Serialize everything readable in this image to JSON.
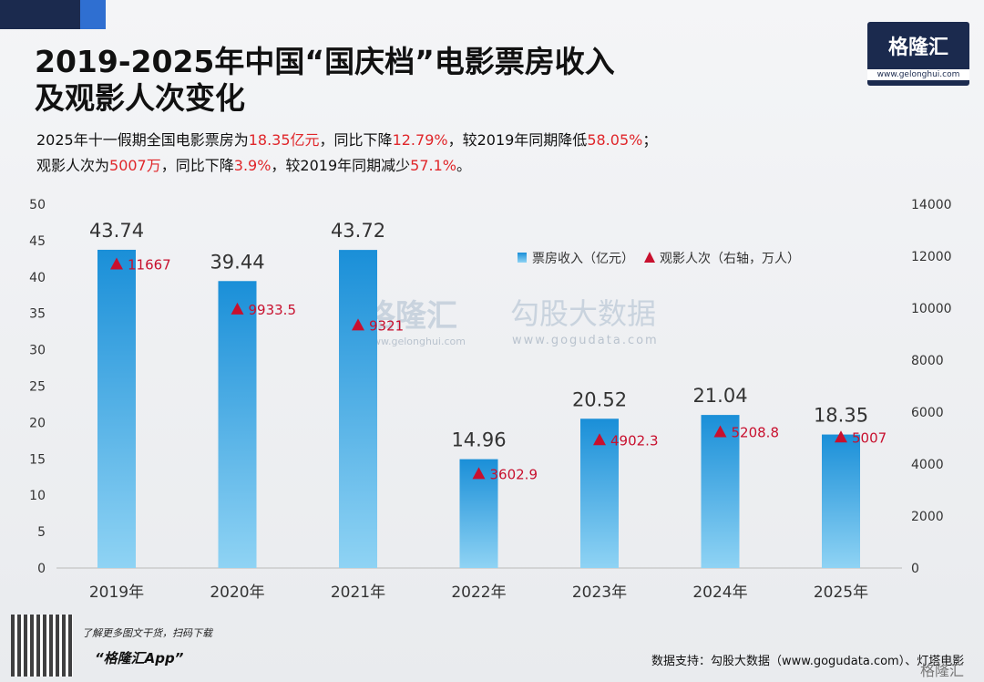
{
  "chart_data": {
    "type": "bar",
    "title": [
      "2019-2025年中国“国庆档”电影票房收入",
      "及观影人次变化"
    ],
    "subtitle": [
      [
        {
          "text": "2025年十一假期全国电影票房为"
        },
        {
          "text": "18.35亿元",
          "highlight": true
        },
        {
          "text": "，同比下降"
        },
        {
          "text": "12.79%",
          "highlight": true
        },
        {
          "text": "，较2019年同期降低"
        },
        {
          "text": "58.05%",
          "highlight": true
        },
        {
          "text": "；"
        }
      ],
      [
        {
          "text": "观影人次为"
        },
        {
          "text": "5007万",
          "highlight": true
        },
        {
          "text": "，同比下降"
        },
        {
          "text": "3.9%",
          "highlight": true
        },
        {
          "text": "，较2019年同期减少"
        },
        {
          "text": "57.1%",
          "highlight": true
        },
        {
          "text": "。"
        }
      ]
    ],
    "brand": {
      "name": "格隆汇",
      "url": "www.gelonghui.com"
    },
    "watermark": {
      "name": "格隆汇",
      "url": "www.gelonghui.com",
      "name2": "勾股大数据",
      "url2": "www.gogudata.com"
    },
    "categories": [
      "2019年",
      "2020年",
      "2021年",
      "2022年",
      "2023年",
      "2024年",
      "2025年"
    ],
    "series": [
      {
        "name": "票房收入（亿元）",
        "type": "bar",
        "color": "#1a8fd8",
        "values": [
          43.74,
          39.44,
          43.72,
          14.96,
          20.52,
          21.04,
          18.35
        ]
      },
      {
        "name": "观影人次（右轴，万人）",
        "type": "scatter",
        "axis": "y2",
        "color": "#c8102e",
        "values": [
          11667,
          9933.5,
          9321,
          3602.9,
          4902.3,
          5208.8,
          5007
        ]
      }
    ],
    "ylim": [
      0,
      50
    ],
    "yticks": [
      0,
      5,
      10,
      15,
      20,
      25,
      30,
      35,
      40,
      45,
      50
    ],
    "y2lim": [
      0,
      14000
    ],
    "y2ticks": [
      0,
      2000,
      4000,
      6000,
      8000,
      10000,
      12000,
      14000
    ],
    "legend": "upper-right",
    "footer": {
      "note": "了解更多图文干货，扫码下载",
      "app": "“格隆汇App”",
      "source": "数据支持：勾股大数据（www.gogudata.com）、灯塔电影",
      "brand": "格隆汇"
    }
  }
}
